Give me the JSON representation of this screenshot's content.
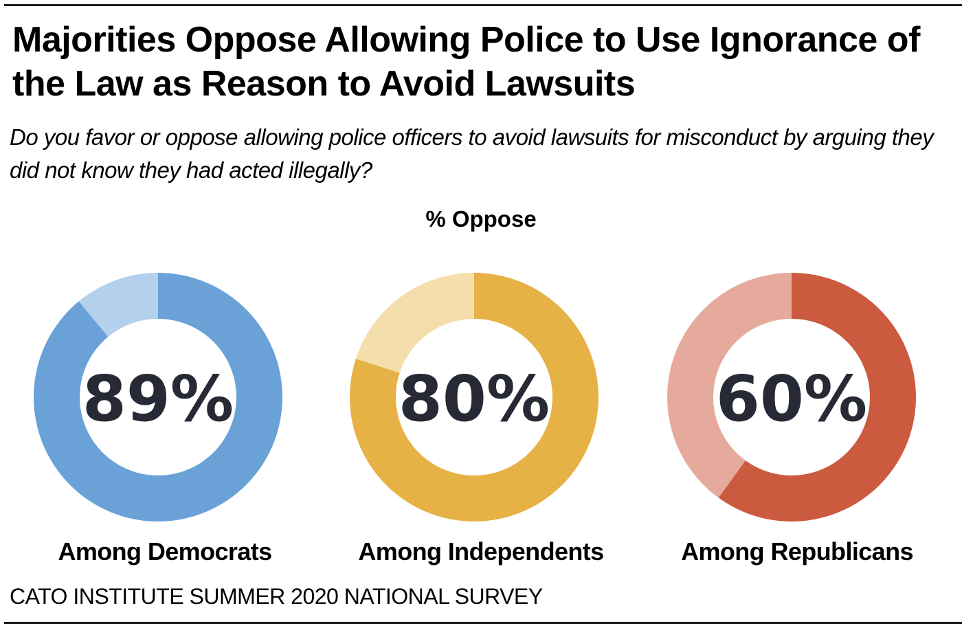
{
  "chart_data": {
    "type": "pie",
    "variant": "donut",
    "title": "Majorities Oppose Allowing Police to Use Ignorance of the Law as Reason to Avoid Lawsuits",
    "subtitle": "Do you favor or oppose allowing police officers to avoid lawsuits for misconduct by arguing they did not know they had acted illegally?",
    "measure_label": "% Oppose",
    "source": "CATO INSTITUTE SUMMER 2020 NATIONAL SURVEY",
    "series": [
      {
        "name": "Among Democrats",
        "value": 89,
        "display": "89%",
        "color": "#6aa2d8",
        "remainder_color": "#b3d0ec"
      },
      {
        "name": "Among Independents",
        "value": 80,
        "display": "80%",
        "color": "#e6b245",
        "remainder_color": "#f4deac"
      },
      {
        "name": "Among Republicans",
        "value": 60,
        "display": "60%",
        "color": "#cb5a3f",
        "remainder_color": "#e6aa9d"
      }
    ]
  }
}
